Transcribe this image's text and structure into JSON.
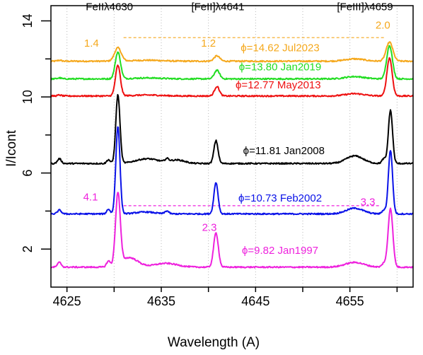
{
  "chart_data": {
    "type": "line",
    "xlabel": "Wavelength (A)",
    "ylabel": "I/Icont",
    "xlim": [
      4623.3,
      4661.7
    ],
    "ylim": [
      0,
      14.8
    ],
    "xticks": [
      4625,
      4630,
      4635,
      4640,
      4645,
      4650,
      4655,
      4660
    ],
    "xtick_labels": [
      "4625",
      "",
      "4635",
      "",
      "4645",
      "",
      "4655",
      ""
    ],
    "yticks": [
      2,
      4,
      6,
      8,
      10,
      12,
      14
    ],
    "ytick_labels": [
      "2",
      "",
      "6",
      "",
      "10",
      "",
      "14"
    ],
    "line_labels": [
      {
        "text": "FeIIλ4630",
        "x": 4629.5,
        "y": 14.55
      },
      {
        "text": "[FeII]λ4641",
        "x": 4641.0,
        "y": 14.55
      },
      {
        "text": "[FeIII]λ4659",
        "x": 4656.6,
        "y": 14.55
      }
    ],
    "series": [
      {
        "name": "ϕ=14.62 Jul2023",
        "color": "#f5a81c",
        "baseline": 11.88,
        "label_pos": [
          4647.6,
          12.4
        ],
        "peaks": [
          [
            4624.2,
            0.05,
            0.2
          ],
          [
            4630.4,
            0.7,
            0.35
          ],
          [
            4640.9,
            0.28,
            0.3
          ],
          [
            4659.2,
            1.0,
            0.35
          ]
        ],
        "bumps": [
          [
            4633.5,
            0.05,
            1.5
          ],
          [
            4655.5,
            0.12,
            1.0
          ]
        ]
      },
      {
        "name": "ϕ=13.80 Jan2019",
        "color": "#22dd22",
        "baseline": 10.95,
        "label_pos": [
          4647.6,
          11.4
        ],
        "peaks": [
          [
            4624.2,
            0.05,
            0.2
          ],
          [
            4630.4,
            1.4,
            0.28
          ],
          [
            4640.9,
            0.45,
            0.28
          ],
          [
            4659.2,
            1.75,
            0.3
          ]
        ],
        "bumps": [
          [
            4633.5,
            0.05,
            1.5
          ],
          [
            4655.5,
            0.12,
            1.0
          ]
        ]
      },
      {
        "name": "ϕ=12.77 May2013",
        "color": "#ee1111",
        "baseline": 10.05,
        "label_pos": [
          4647.4,
          10.45
        ],
        "peaks": [
          [
            4624.2,
            0.05,
            0.2
          ],
          [
            4630.4,
            1.6,
            0.26
          ],
          [
            4640.9,
            0.5,
            0.26
          ],
          [
            4659.2,
            2.0,
            0.28
          ]
        ],
        "bumps": [
          [
            4633.5,
            0.05,
            1.5
          ],
          [
            4655.5,
            0.12,
            1.0
          ]
        ]
      },
      {
        "name": "ϕ=11.81 Jan2008",
        "color": "#000000",
        "baseline": 6.5,
        "label_pos": [
          4648.0,
          7.0
        ],
        "peaks": [
          [
            4624.2,
            0.25,
            0.2
          ],
          [
            4629.4,
            0.2,
            0.18
          ],
          [
            4630.4,
            3.6,
            0.22
          ],
          [
            4635.6,
            0.15,
            0.2
          ],
          [
            4640.8,
            1.2,
            0.22
          ],
          [
            4658.6,
            0.25,
            0.2
          ],
          [
            4659.3,
            2.8,
            0.22
          ]
        ],
        "bumps": [
          [
            4633.5,
            0.25,
            1.2
          ],
          [
            4636.7,
            0.18,
            0.8
          ],
          [
            4655.5,
            0.4,
            0.9
          ]
        ]
      },
      {
        "name": "ϕ=10.73 Feb2002",
        "color": "#0a12e8",
        "baseline": 3.85,
        "label_pos": [
          4647.6,
          4.5
        ],
        "peaks": [
          [
            4624.2,
            0.2,
            0.2
          ],
          [
            4629.4,
            0.25,
            0.18
          ],
          [
            4630.4,
            4.6,
            0.22
          ],
          [
            4635.6,
            0.15,
            0.2
          ],
          [
            4640.8,
            1.65,
            0.22
          ],
          [
            4658.6,
            0.2,
            0.2
          ],
          [
            4659.3,
            3.35,
            0.22
          ]
        ],
        "bumps": [
          [
            4633.3,
            0.1,
            1.0
          ],
          [
            4655.5,
            0.3,
            0.9
          ]
        ]
      },
      {
        "name": "ϕ=9.82 Jan1997",
        "color": "#ee22dd",
        "baseline": 1.05,
        "label_pos": [
          4647.6,
          1.75
        ],
        "peaks": [
          [
            4624.2,
            0.25,
            0.2
          ],
          [
            4629.4,
            0.3,
            0.2
          ],
          [
            4630.4,
            3.75,
            0.25
          ],
          [
            4640.8,
            1.8,
            0.25
          ],
          [
            4658.6,
            0.2,
            0.2
          ],
          [
            4659.3,
            3.1,
            0.25
          ]
        ],
        "bumps": [
          [
            4631.6,
            0.5,
            0.9
          ],
          [
            4635.5,
            0.2,
            1.2
          ],
          [
            4655.5,
            0.25,
            1.0
          ]
        ]
      }
    ],
    "annotations": [
      {
        "text": "1.4",
        "x": 4627.6,
        "y": 12.65,
        "color": "#f5a81c"
      },
      {
        "text": "1.2",
        "x": 4640.0,
        "y": 12.65,
        "color": "#f5a81c"
      },
      {
        "text": "2.0",
        "x": 4658.5,
        "y": 13.6,
        "color": "#f5a81c"
      },
      {
        "text": "4.1",
        "x": 4627.5,
        "y": 4.55,
        "color": "#ee22dd"
      },
      {
        "text": "2.3",
        "x": 4640.1,
        "y": 2.95,
        "color": "#ee22dd"
      },
      {
        "text": "3.3",
        "x": 4656.9,
        "y": 4.3,
        "color": "#ee22dd"
      }
    ],
    "reference_lines": [
      {
        "x0": 4631.0,
        "x1": 4658.8,
        "y": 13.12,
        "color": "#f5a81c",
        "style": "dashed"
      },
      {
        "x0": 4631.0,
        "x1": 4658.3,
        "y": 4.28,
        "color": "#ee22dd",
        "style": "dashed"
      }
    ]
  }
}
